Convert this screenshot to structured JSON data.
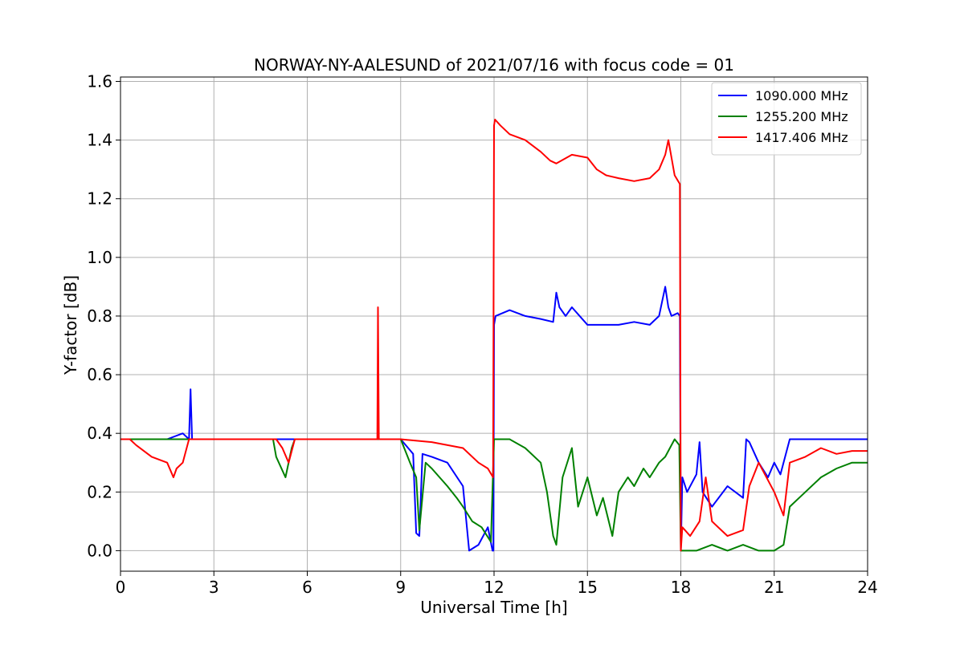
{
  "chart_data": {
    "type": "line",
    "title": "NORWAY-NY-AALESUND of 2021/07/16 with focus code = 01",
    "xlabel": "Universal Time [h]",
    "ylabel": "Y-factor [dB]",
    "xlim": [
      0,
      24
    ],
    "ylim": [
      -0.07,
      1.615
    ],
    "xticks": [
      0,
      3,
      6,
      9,
      12,
      15,
      18,
      21,
      24
    ],
    "xtick_labels": [
      "0",
      "3",
      "6",
      "9",
      "12",
      "15",
      "18",
      "21",
      "24"
    ],
    "yticks": [
      0.0,
      0.2,
      0.4,
      0.6,
      0.8,
      1.0,
      1.2,
      1.4,
      1.6
    ],
    "ytick_labels": [
      "0.0",
      "0.2",
      "0.4",
      "0.6",
      "0.8",
      "1.0",
      "1.2",
      "1.4",
      "1.6"
    ],
    "grid": true,
    "legend_position": "top-right",
    "series": [
      {
        "name": "1090.000 MHz",
        "color": "#0000ff",
        "x": [
          0,
          1.5,
          2.0,
          2.2,
          2.25,
          2.3,
          2.5,
          5,
          8.2,
          9.0,
          9.4,
          9.5,
          9.6,
          9.7,
          10.0,
          10.5,
          11.0,
          11.2,
          11.5,
          11.8,
          11.95,
          11.98,
          12.0,
          12.05,
          12.5,
          13.0,
          13.5,
          13.9,
          14.0,
          14.1,
          14.3,
          14.5,
          15,
          16,
          16.5,
          17.0,
          17.3,
          17.5,
          17.6,
          17.7,
          17.9,
          17.97,
          18.0,
          18.05,
          18.2,
          18.5,
          18.6,
          18.7,
          19.0,
          19.5,
          20.0,
          20.1,
          20.2,
          20.5,
          20.8,
          21.0,
          21.2,
          21.5,
          22,
          23,
          24
        ],
        "y": [
          0.38,
          0.38,
          0.4,
          0.38,
          0.55,
          0.38,
          0.38,
          0.38,
          0.38,
          0.38,
          0.33,
          0.06,
          0.05,
          0.33,
          0.32,
          0.3,
          0.22,
          0.0,
          0.02,
          0.08,
          0.0,
          0.0,
          0.77,
          0.8,
          0.82,
          0.8,
          0.79,
          0.78,
          0.88,
          0.83,
          0.8,
          0.83,
          0.77,
          0.77,
          0.78,
          0.77,
          0.8,
          0.9,
          0.83,
          0.8,
          0.81,
          0.8,
          0.0,
          0.25,
          0.2,
          0.26,
          0.37,
          0.2,
          0.15,
          0.22,
          0.18,
          0.38,
          0.37,
          0.3,
          0.25,
          0.3,
          0.26,
          0.38,
          0.38,
          0.38,
          0.38
        ]
      },
      {
        "name": "1255.200 MHz",
        "color": "#008000",
        "x": [
          0,
          1,
          1.8,
          2.3,
          4.9,
          5.0,
          5.3,
          5.5,
          5.6,
          6,
          8.2,
          9.0,
          9.3,
          9.5,
          9.6,
          9.8,
          10.0,
          10.5,
          10.8,
          11.0,
          11.3,
          11.6,
          11.9,
          12.0,
          12.5,
          13.0,
          13.5,
          13.7,
          13.9,
          14.0,
          14.2,
          14.5,
          14.7,
          15.0,
          15.3,
          15.5,
          15.8,
          16.0,
          16.3,
          16.5,
          16.8,
          17.0,
          17.3,
          17.5,
          17.8,
          17.95,
          18.0,
          18.5,
          19.0,
          19.5,
          20.0,
          20.5,
          21.0,
          21.3,
          21.5,
          22.0,
          22.5,
          23.0,
          23.5,
          24
        ],
        "y": [
          0.38,
          0.38,
          0.38,
          0.38,
          0.38,
          0.32,
          0.25,
          0.35,
          0.38,
          0.38,
          0.38,
          0.38,
          0.3,
          0.25,
          0.07,
          0.3,
          0.28,
          0.22,
          0.18,
          0.15,
          0.1,
          0.08,
          0.03,
          0.38,
          0.38,
          0.35,
          0.3,
          0.2,
          0.05,
          0.02,
          0.25,
          0.35,
          0.15,
          0.25,
          0.12,
          0.18,
          0.05,
          0.2,
          0.25,
          0.22,
          0.28,
          0.25,
          0.3,
          0.32,
          0.38,
          0.36,
          0.0,
          0.0,
          0.02,
          0.0,
          0.02,
          0.0,
          0.0,
          0.02,
          0.15,
          0.2,
          0.25,
          0.28,
          0.3,
          0.3
        ]
      },
      {
        "name": "1417.406 MHz",
        "color": "#ff0000",
        "x": [
          0,
          0.3,
          0.5,
          1.0,
          1.5,
          1.7,
          1.8,
          2.0,
          2.2,
          2.3,
          5.0,
          5.2,
          5.4,
          5.6,
          6.0,
          8.25,
          8.27,
          8.3,
          9.0,
          10.0,
          11.0,
          11.5,
          11.8,
          11.97,
          12.0,
          12.03,
          12.2,
          12.5,
          13.0,
          13.5,
          13.8,
          14.0,
          14.5,
          15.0,
          15.3,
          15.6,
          16.0,
          16.5,
          17.0,
          17.3,
          17.5,
          17.6,
          17.8,
          17.97,
          18.0,
          18.05,
          18.3,
          18.6,
          18.8,
          19.0,
          19.5,
          20.0,
          20.2,
          20.5,
          21.0,
          21.3,
          21.5,
          22.0,
          22.5,
          23.0,
          23.5,
          24
        ],
        "y": [
          0.38,
          0.38,
          0.36,
          0.32,
          0.3,
          0.25,
          0.28,
          0.3,
          0.38,
          0.38,
          0.38,
          0.35,
          0.3,
          0.38,
          0.38,
          0.38,
          0.83,
          0.38,
          0.38,
          0.37,
          0.35,
          0.3,
          0.28,
          0.25,
          1.45,
          1.47,
          1.45,
          1.42,
          1.4,
          1.36,
          1.33,
          1.32,
          1.35,
          1.34,
          1.3,
          1.28,
          1.27,
          1.26,
          1.27,
          1.3,
          1.35,
          1.4,
          1.28,
          1.25,
          0.0,
          0.08,
          0.05,
          0.1,
          0.25,
          0.1,
          0.05,
          0.07,
          0.22,
          0.3,
          0.2,
          0.12,
          0.3,
          0.32,
          0.35,
          0.33,
          0.34,
          0.34
        ]
      }
    ]
  }
}
